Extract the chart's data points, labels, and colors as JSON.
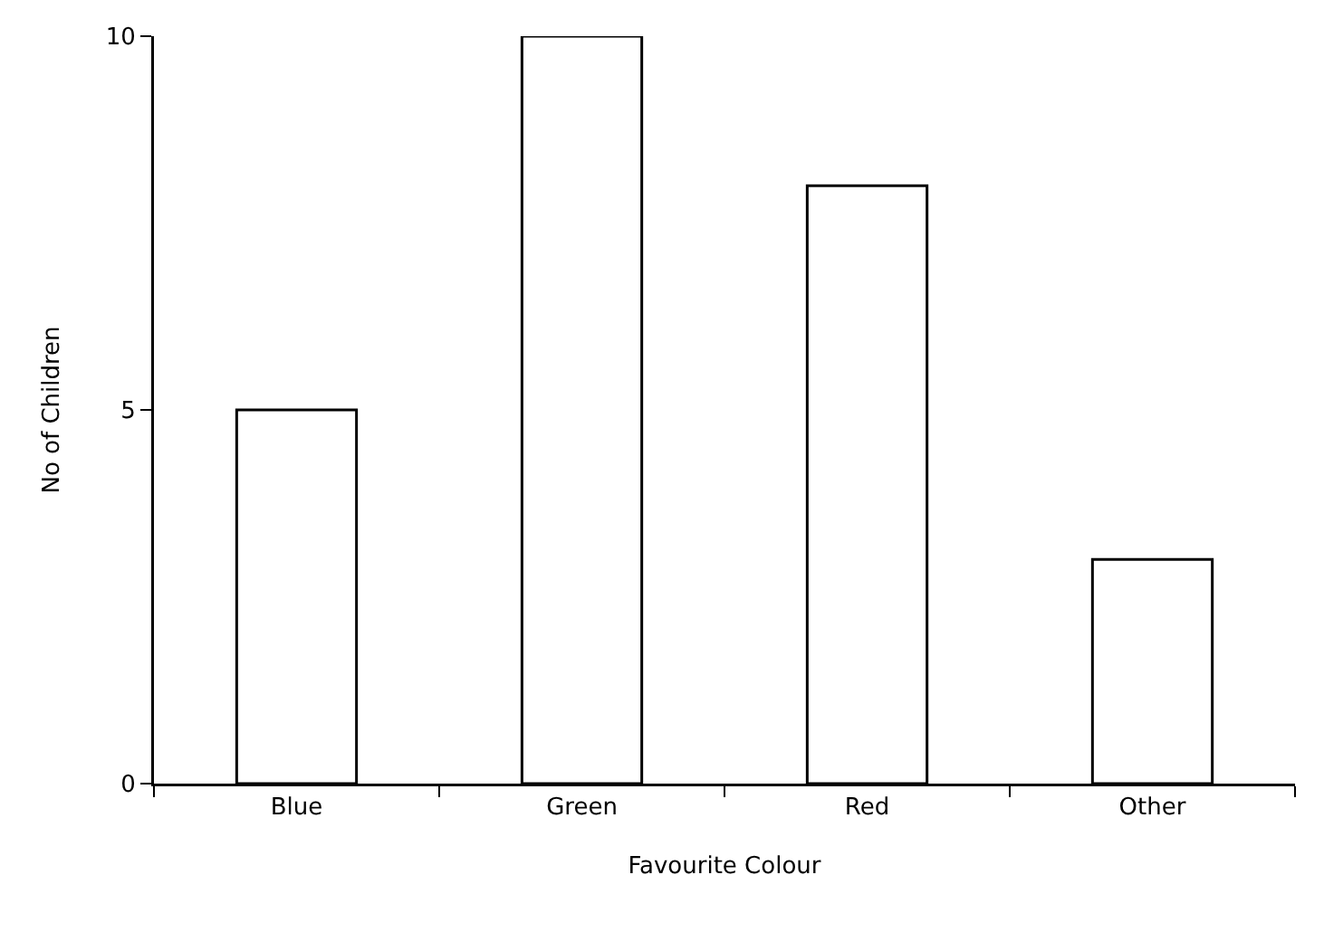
{
  "chart_data": {
    "type": "bar",
    "xlabel": "Favourite Colour",
    "ylabel": "No of Children",
    "categories": [
      "Blue",
      "Green",
      "Red",
      "Other"
    ],
    "values": [
      5,
      10,
      8,
      3
    ],
    "color": "#ffffff",
    "ylim": [
      0,
      10
    ],
    "yticks": [
      0,
      5,
      10
    ],
    "grid": false
  }
}
